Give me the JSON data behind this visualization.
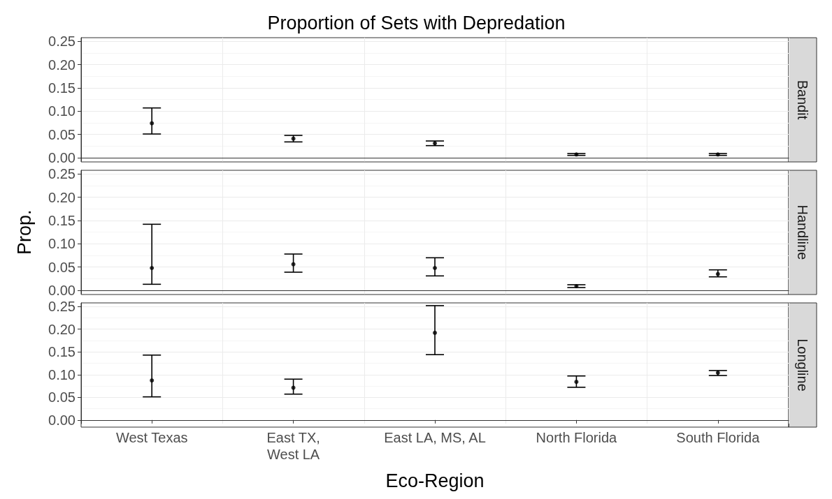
{
  "chart_data": [
    {
      "type": "scatter",
      "title": "Proportion of Sets with Depredation",
      "subtitle": "Bandit",
      "categories": [
        null,
        null,
        null,
        null,
        null
      ],
      "series": [
        {
          "color": "#000000",
          "values": [
            0.074,
            0.041,
            0.031,
            0.007,
            0.007
          ],
          "errors": [
            [
              0.051,
              0.107
            ],
            [
              0.034,
              0.048
            ],
            [
              0.026,
              0.036
            ],
            [
              0.005,
              0.009
            ],
            [
              0.005,
              0.009
            ]
          ]
        }
      ],
      "ylim": [
        -0.008,
        0.258
      ],
      "yticks": [
        {
          "value": 0,
          "label": "0.00"
        },
        0.05,
        {
          "value": 0.1,
          "label": "0.10"
        },
        0.15,
        {
          "value": 0.2,
          "label": "0.20"
        },
        0.25
      ],
      "grid": true,
      "marker": "circle",
      "tick_labels": "y"
    },
    {
      "type": "scatter",
      "subtitle": "Handline",
      "ylabel": "Prop.",
      "categories": [
        null,
        null,
        null,
        null,
        null
      ],
      "series": [
        {
          "color": "#000000",
          "values": [
            0.048,
            0.056,
            0.048,
            0.009,
            0.035
          ],
          "errors": [
            [
              0.013,
              0.142
            ],
            [
              0.039,
              0.078
            ],
            [
              0.031,
              0.07
            ],
            [
              0.006,
              0.012
            ],
            [
              0.029,
              0.044
            ]
          ]
        }
      ],
      "ylim": [
        -0.008,
        0.258
      ],
      "yticks": [
        {
          "value": 0,
          "label": "0.00"
        },
        0.05,
        {
          "value": 0.1,
          "label": "0.10"
        },
        0.15,
        {
          "value": 0.2,
          "label": "0.20"
        },
        0.25
      ],
      "grid": true,
      "marker": "circle",
      "tick_labels": "y"
    },
    {
      "type": "scatter",
      "subtitle": "Longline",
      "xlabel": "Eco-Region",
      "categories": [
        "West Texas",
        "East TX,\nWest LA",
        "East LA, MS, AL",
        "North Florida",
        "South Florida"
      ],
      "series": [
        {
          "color": "#000000",
          "values": [
            0.087,
            0.071,
            0.192,
            0.084,
            0.104
          ],
          "errors": [
            [
              0.051,
              0.143
            ],
            [
              0.057,
              0.09
            ],
            [
              0.144,
              0.252
            ],
            [
              0.072,
              0.097
            ],
            [
              0.098,
              0.109
            ]
          ]
        }
      ],
      "ylim": [
        -0.008,
        0.258
      ],
      "yticks": [
        {
          "value": 0,
          "label": "0.00"
        },
        0.05,
        {
          "value": 0.1,
          "label": "0.10"
        },
        0.15,
        {
          "value": 0.2,
          "label": "0.20"
        },
        0.25
      ],
      "grid": true,
      "marker": "circle"
    }
  ]
}
